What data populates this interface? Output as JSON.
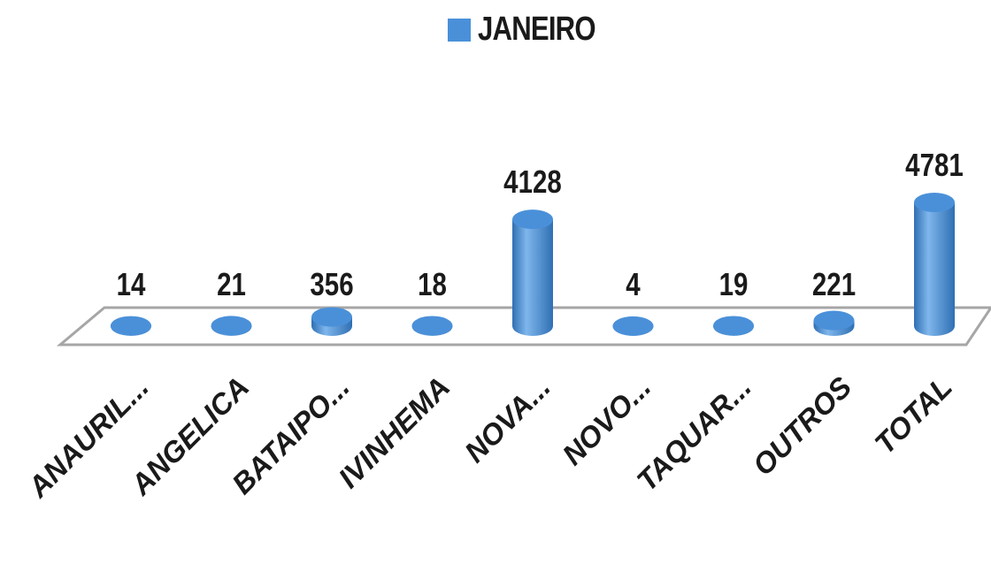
{
  "chart_data": {
    "type": "bar",
    "categories": [
      "ANAURIL...",
      "ANGELICA",
      "BATAIPO...",
      "IVINHEMA",
      "NOVA...",
      "NOVO...",
      "TAQUAR...",
      "OUTROS",
      "TOTAL"
    ],
    "series": [
      {
        "name": "JANEIRO",
        "values": [
          14,
          21,
          356,
          18,
          4128,
          4,
          19,
          221,
          4781
        ]
      }
    ],
    "data_labels": [
      "14",
      "21",
      "356",
      "18",
      "4128",
      "4",
      "19",
      "221",
      "4781"
    ],
    "legend_position": "top",
    "style": "3d-cylinder",
    "grid": false
  },
  "colors": {
    "bar": "#4a90d9",
    "bar_dark": "#2f6fb3",
    "bar_light": "#7fb6ec",
    "floor": "#ffffff",
    "floor_edge": "#a6a6a6",
    "text": "#1a1a1a"
  }
}
